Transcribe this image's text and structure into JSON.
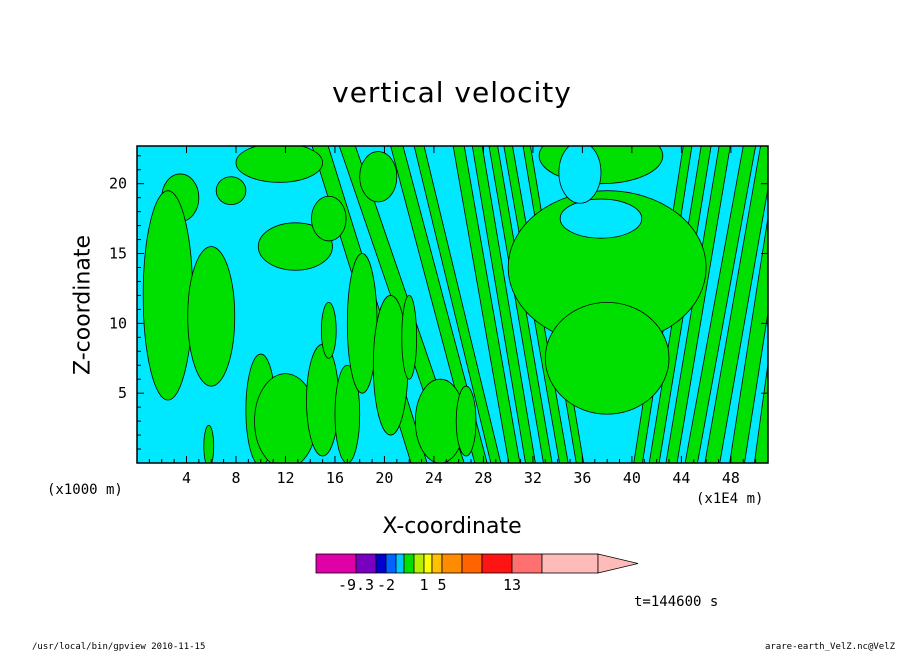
{
  "chart_data": {
    "type": "heatmap",
    "title": "vertical velocity",
    "xlabel": "X-coordinate",
    "ylabel": "Z-coordinate",
    "x_unit_note": "(x1000 m)",
    "x_unit_note_right": "(x1E4 m)",
    "time_label": "t=144600 s",
    "x_ticks": [
      4,
      8,
      12,
      16,
      20,
      24,
      28,
      32,
      36,
      40,
      44,
      48
    ],
    "y_ticks": [
      5,
      10,
      15,
      20
    ],
    "xlim": [
      0,
      51
    ],
    "ylim": [
      0,
      22.7
    ],
    "colors": {
      "negative_region": "#00e8ff",
      "positive_region": "#00e000",
      "contour_line": "#000000",
      "frame": "#000000"
    },
    "regions": [
      {
        "label": "positive",
        "shape": "ellipse",
        "cx": 3.5,
        "cy": 19.0,
        "rx": 1.5,
        "ry": 1.7
      },
      {
        "label": "positive",
        "shape": "ellipse",
        "cx": 2.5,
        "cy": 12.0,
        "rx": 2.0,
        "ry": 7.5
      },
      {
        "label": "positive",
        "shape": "ellipse",
        "cx": 6.0,
        "cy": 10.5,
        "rx": 1.9,
        "ry": 5.0
      },
      {
        "label": "positive",
        "shape": "ellipse",
        "cx": 7.6,
        "cy": 19.5,
        "rx": 1.2,
        "ry": 1.0
      },
      {
        "label": "positive",
        "shape": "ellipse",
        "cx": 11.5,
        "cy": 21.5,
        "rx": 3.5,
        "ry": 1.4
      },
      {
        "label": "positive",
        "shape": "ellipse",
        "cx": 12.8,
        "cy": 15.5,
        "rx": 3.0,
        "ry": 1.7
      },
      {
        "label": "positive",
        "shape": "ellipse",
        "cx": 15.5,
        "cy": 17.5,
        "rx": 1.4,
        "ry": 1.6
      },
      {
        "label": "positive",
        "shape": "ellipse",
        "cx": 19.5,
        "cy": 20.5,
        "rx": 1.5,
        "ry": 1.8
      },
      {
        "label": "positive",
        "shape": "ellipse",
        "cx": 10.0,
        "cy": 3.8,
        "rx": 1.2,
        "ry": 4.0
      },
      {
        "label": "positive",
        "shape": "ellipse",
        "cx": 12.0,
        "cy": 3.0,
        "rx": 2.5,
        "ry": 3.4
      },
      {
        "label": "positive",
        "shape": "ellipse",
        "cx": 15.0,
        "cy": 4.5,
        "rx": 1.3,
        "ry": 4.0
      },
      {
        "label": "positive",
        "shape": "ellipse",
        "cx": 17.0,
        "cy": 3.5,
        "rx": 1.0,
        "ry": 3.5
      },
      {
        "label": "positive",
        "shape": "ellipse",
        "cx": 15.5,
        "cy": 9.5,
        "rx": 0.6,
        "ry": 2.0
      },
      {
        "label": "positive",
        "shape": "ellipse",
        "cx": 18.2,
        "cy": 10.0,
        "rx": 1.2,
        "ry": 5.0
      },
      {
        "label": "positive",
        "shape": "ellipse",
        "cx": 20.5,
        "cy": 7.0,
        "rx": 1.4,
        "ry": 5.0
      },
      {
        "label": "positive",
        "shape": "ellipse",
        "cx": 22.0,
        "cy": 9.0,
        "rx": 0.6,
        "ry": 3.0
      },
      {
        "label": "positive",
        "shape": "ellipse",
        "cx": 24.5,
        "cy": 3.0,
        "rx": 2.0,
        "ry": 3.0
      },
      {
        "label": "positive",
        "shape": "ellipse",
        "cx": 26.6,
        "cy": 3.0,
        "rx": 0.8,
        "ry": 2.5
      },
      {
        "label": "positive",
        "shape": "ellipse",
        "cx": 5.8,
        "cy": 1.2,
        "rx": 0.4,
        "ry": 1.5
      },
      {
        "label": "positive",
        "shape": "ellipse",
        "cx": 38.0,
        "cy": 14.0,
        "rx": 8.0,
        "ry": 5.5
      },
      {
        "label": "positive",
        "shape": "ellipse",
        "cx": 37.5,
        "cy": 22.0,
        "rx": 5.0,
        "ry": 2.0
      },
      {
        "label": "positive",
        "shape": "ellipse",
        "cx": 38.0,
        "cy": 7.5,
        "rx": 5.0,
        "ry": 4.0
      },
      {
        "label": "negative",
        "shape": "ellipse",
        "cx": 37.5,
        "cy": 17.5,
        "rx": 3.3,
        "ry": 1.4
      },
      {
        "label": "negative",
        "shape": "ellipse",
        "cx": 35.8,
        "cy": 20.8,
        "rx": 1.7,
        "ry": 2.2
      }
    ],
    "stripes": [
      {
        "x_bottom": 22.8,
        "x_top": 14.8,
        "width": 1.3
      },
      {
        "x_bottom": 25.8,
        "x_top": 17.0,
        "width": 1.3
      },
      {
        "x_bottom": 27.8,
        "x_top": 21.0,
        "width": 1.0
      },
      {
        "x_bottom": 29.0,
        "x_top": 22.8,
        "width": 0.8
      },
      {
        "x_bottom": 30.5,
        "x_top": 26.0,
        "width": 0.9
      },
      {
        "x_bottom": 31.8,
        "x_top": 27.5,
        "width": 0.8
      },
      {
        "x_bottom": 33.2,
        "x_top": 28.8,
        "width": 0.7
      },
      {
        "x_bottom": 34.5,
        "x_top": 30.0,
        "width": 0.7
      },
      {
        "x_bottom": 35.8,
        "x_top": 31.5,
        "width": 0.6
      },
      {
        "x_bottom": 40.5,
        "x_top": 44.5,
        "width": 0.7
      },
      {
        "x_bottom": 41.8,
        "x_top": 46.0,
        "width": 0.8
      },
      {
        "x_bottom": 43.2,
        "x_top": 47.5,
        "width": 0.9
      },
      {
        "x_bottom": 44.8,
        "x_top": 49.5,
        "width": 1.0
      },
      {
        "x_bottom": 46.5,
        "x_top": 51.0,
        "width": 1.2
      },
      {
        "x_bottom": 48.5,
        "x_top": 52.5,
        "width": 1.2
      },
      {
        "x_bottom": 50.5,
        "x_top": 54.0,
        "width": 1.2
      }
    ],
    "colorbar": {
      "colors": [
        "#e000a8",
        "#7800c0",
        "#0000d0",
        "#0064ff",
        "#00c8ff",
        "#00e000",
        "#b4f000",
        "#ffff00",
        "#ffc000",
        "#ff8c00",
        "#ff6400",
        "#ff1414",
        "#ff7070",
        "#ffbaba"
      ],
      "widths": [
        40,
        20,
        10,
        10,
        8,
        10,
        10,
        8,
        10,
        20,
        20,
        30,
        30,
        56
      ],
      "tip_color": "#ffbaba",
      "tick_labels": [
        "-9.3",
        "-2",
        "1",
        "5",
        "13"
      ],
      "tick_values_at_boundary_index": [
        1,
        3,
        7,
        9,
        12
      ]
    }
  },
  "footer": {
    "left": "/usr/local/bin/gpview  2010-11-15",
    "right": "arare-earth_VelZ.nc@VelZ"
  }
}
